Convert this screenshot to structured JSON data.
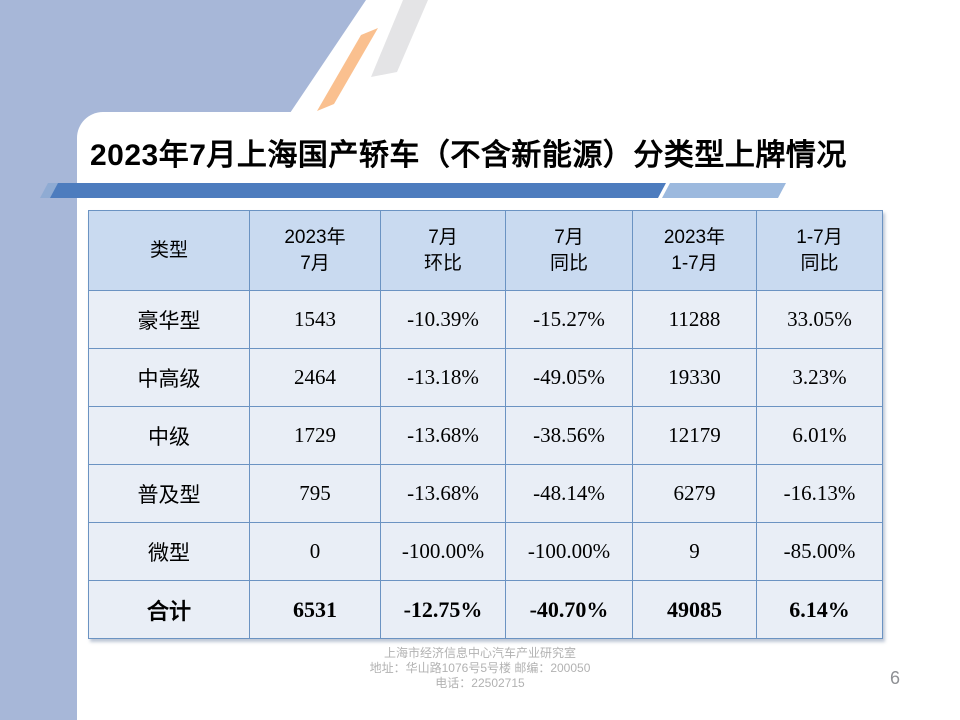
{
  "slide": {
    "title": "2023年7月上海国产轿车（不含新能源）分类型上牌情况",
    "page_number": "6",
    "footer": {
      "line1": "上海市经济信息中心汽车产业研究室",
      "line2": "地址：华山路1076号5号楼  邮编：200050",
      "line3": "电话：22502715"
    }
  },
  "colors": {
    "background_blue": "#a7b7d8",
    "accent_bar_dark": "#4d7cbe",
    "accent_bar_light": "#9cb9de",
    "stripe_orange": "#fac08f",
    "stripe_gray": "#e4e4e6",
    "table_border": "#6b93c2",
    "table_header_bg": "#c9daf0",
    "table_cell_bg": "#e9eef6"
  },
  "chart_data": {
    "type": "table",
    "title": "2023年7月上海国产轿车（不含新能源）分类型上牌情况",
    "columns": [
      [
        "类型"
      ],
      [
        "2023年",
        "7月"
      ],
      [
        "7月",
        "环比"
      ],
      [
        "7月",
        "同比"
      ],
      [
        "2023年",
        "1-7月"
      ],
      [
        "1-7月",
        "同比"
      ]
    ],
    "rows": [
      {
        "cells": [
          "豪华型",
          "1543",
          "-10.39%",
          "-15.27%",
          "11288",
          "33.05%"
        ],
        "bold": false
      },
      {
        "cells": [
          "中高级",
          "2464",
          "-13.18%",
          "-49.05%",
          "19330",
          "3.23%"
        ],
        "bold": false
      },
      {
        "cells": [
          "中级",
          "1729",
          "-13.68%",
          "-38.56%",
          "12179",
          "6.01%"
        ],
        "bold": false
      },
      {
        "cells": [
          "普及型",
          "795",
          "-13.68%",
          "-48.14%",
          "6279",
          "-16.13%"
        ],
        "bold": false
      },
      {
        "cells": [
          "微型",
          "0",
          "-100.00%",
          "-100.00%",
          "9",
          "-85.00%"
        ],
        "bold": false
      },
      {
        "cells": [
          "合计",
          "6531",
          "-12.75%",
          "-40.70%",
          "49085",
          "6.14%"
        ],
        "bold": true
      }
    ]
  }
}
